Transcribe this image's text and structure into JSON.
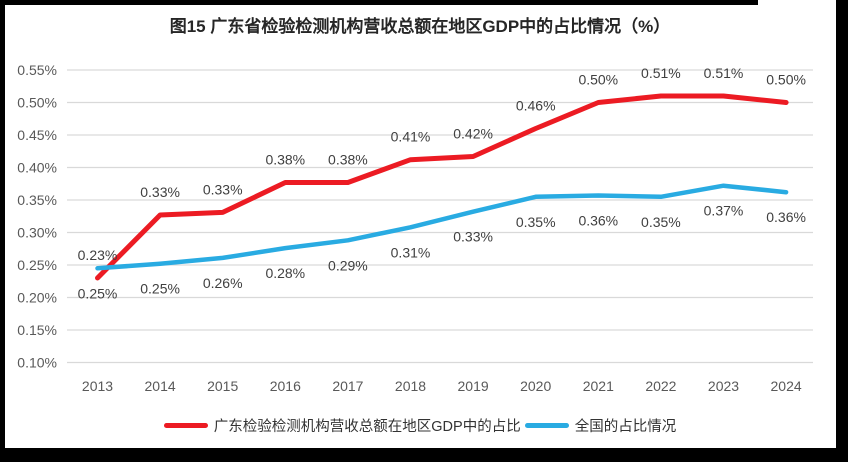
{
  "figure": {
    "title": "图15  广东省检验检测机构营收总额在地区GDP中的占比情况（%）"
  },
  "colors": {
    "frame_border": "#000000",
    "background": "#ffffff",
    "gridline": "#d9d9d9",
    "axis_text": "#595959",
    "data_label_text": "#404040",
    "title_text": "#262626",
    "guangdong_red": "#ec1b23",
    "national_blue": "#29abe2"
  },
  "chart_data": {
    "type": "line",
    "title": "图15  广东省检验检测机构营收总额在地区GDP中的占比情况（%）",
    "xlabel": "",
    "ylabel": "",
    "x": [
      "2013",
      "2014",
      "2015",
      "2016",
      "2017",
      "2018",
      "2019",
      "2020",
      "2021",
      "2022",
      "2023",
      "2024"
    ],
    "ylim": [
      0.1,
      0.55
    ],
    "ytick_values": [
      0.55,
      0.5,
      0.45,
      0.4,
      0.35,
      0.3,
      0.25,
      0.2,
      0.15,
      0.1
    ],
    "ytick_labels": [
      "0.55%",
      "0.50%",
      "0.45%",
      "0.40%",
      "0.35%",
      "0.30%",
      "0.25%",
      "0.20%",
      "0.15%",
      "0.10%"
    ],
    "grid": "horizontal",
    "legend_position": "bottom",
    "series": [
      {
        "name": "广东检验检测机构营收总额在地区GDP中的占比",
        "color": "#ec1b23",
        "line_width": 5,
        "label_position": "above",
        "values": [
          0.23,
          0.33,
          0.33,
          0.38,
          0.38,
          0.41,
          0.42,
          0.46,
          0.5,
          0.51,
          0.51,
          0.5
        ],
        "labels": [
          "0.23%",
          "0.33%",
          "0.33%",
          "0.38%",
          "0.38%",
          "0.41%",
          "0.42%",
          "0.46%",
          "0.50%",
          "0.51%",
          "0.51%",
          "0.50%"
        ],
        "plot_values": [
          0.23,
          0.327,
          0.331,
          0.377,
          0.377,
          0.412,
          0.417,
          0.46,
          0.5,
          0.51,
          0.51,
          0.5
        ]
      },
      {
        "name": "全国的占比情况",
        "color": "#29abe2",
        "line_width": 4.5,
        "label_position": "below",
        "values": [
          0.25,
          0.25,
          0.26,
          0.28,
          0.29,
          0.31,
          0.33,
          0.35,
          0.36,
          0.35,
          0.37,
          0.36
        ],
        "labels": [
          "0.25%",
          "0.25%",
          "0.26%",
          "0.28%",
          "0.29%",
          "0.31%",
          "0.33%",
          "0.35%",
          "0.36%",
          "0.35%",
          "0.37%",
          "0.36%"
        ],
        "plot_values": [
          0.245,
          0.252,
          0.261,
          0.276,
          0.288,
          0.308,
          0.332,
          0.355,
          0.357,
          0.355,
          0.372,
          0.362
        ]
      }
    ]
  }
}
